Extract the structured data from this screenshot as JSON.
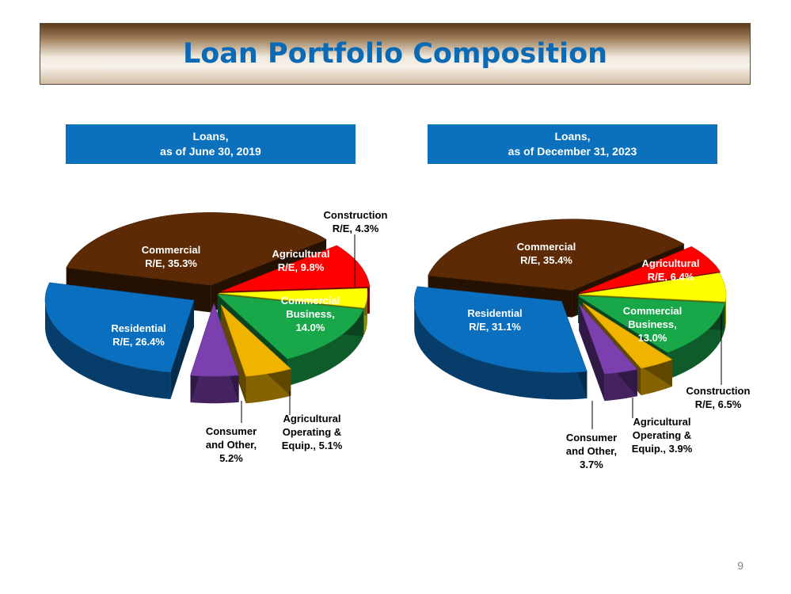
{
  "slide": {
    "title": "Loan Portfolio Composition",
    "page_number": "9"
  },
  "charts": [
    {
      "header_line1": "Loans,",
      "header_line2": "as of June 30, 2019"
    },
    {
      "header_line1": "Loans,",
      "header_line2": "as of December 31, 2023"
    }
  ],
  "chart_data": [
    {
      "type": "pie",
      "title": "Loans, as of June 30, 2019",
      "slices": [
        {
          "label_lines": [
            "Commercial",
            "R/E, 35.3%"
          ],
          "value": 35.3,
          "color": "#5c2b06"
        },
        {
          "label_lines": [
            "Agricultural",
            "R/E, 9.8%"
          ],
          "value": 9.8,
          "color": "#ff0000"
        },
        {
          "label_lines": [
            "Construction",
            "R/E, 4.3%"
          ],
          "value": 4.3,
          "color": "#ffff00"
        },
        {
          "label_lines": [
            "Commercial",
            "Business,",
            "14.0%"
          ],
          "value": 14.0,
          "color": "#18a84a"
        },
        {
          "label_lines": [
            "Agricultural",
            "Operating &",
            "Equip., 5.1%"
          ],
          "value": 5.1,
          "color": "#f0b400"
        },
        {
          "label_lines": [
            "Consumer",
            "and Other,",
            "5.2%"
          ],
          "value": 5.2,
          "color": "#7b3fae"
        },
        {
          "label_lines": [
            "Residential",
            "R/E, 26.4%"
          ],
          "value": 26.4,
          "color": "#0b6fc0"
        }
      ]
    },
    {
      "type": "pie",
      "title": "Loans, as of December 31, 2023",
      "slices": [
        {
          "label_lines": [
            "Commercial",
            "R/E, 35.4%"
          ],
          "value": 35.4,
          "color": "#5c2b06"
        },
        {
          "label_lines": [
            "Agricultural",
            "R/E, 6.4%"
          ],
          "value": 6.4,
          "color": "#ff0000"
        },
        {
          "label_lines": [
            "Construction",
            "R/E, 6.5%"
          ],
          "value": 6.5,
          "color": "#ffff00"
        },
        {
          "label_lines": [
            "Commercial",
            "Business,",
            "13.0%"
          ],
          "value": 13.0,
          "color": "#18a84a"
        },
        {
          "label_lines": [
            "Agricultural",
            "Operating &",
            "Equip., 3.9%"
          ],
          "value": 3.9,
          "color": "#f0b400"
        },
        {
          "label_lines": [
            "Consumer",
            "and Other,",
            "3.7%"
          ],
          "value": 3.7,
          "color": "#7b3fae"
        },
        {
          "label_lines": [
            "Residential",
            "R/E, 31.1%"
          ],
          "value": 31.1,
          "color": "#0b6fc0"
        }
      ]
    }
  ]
}
